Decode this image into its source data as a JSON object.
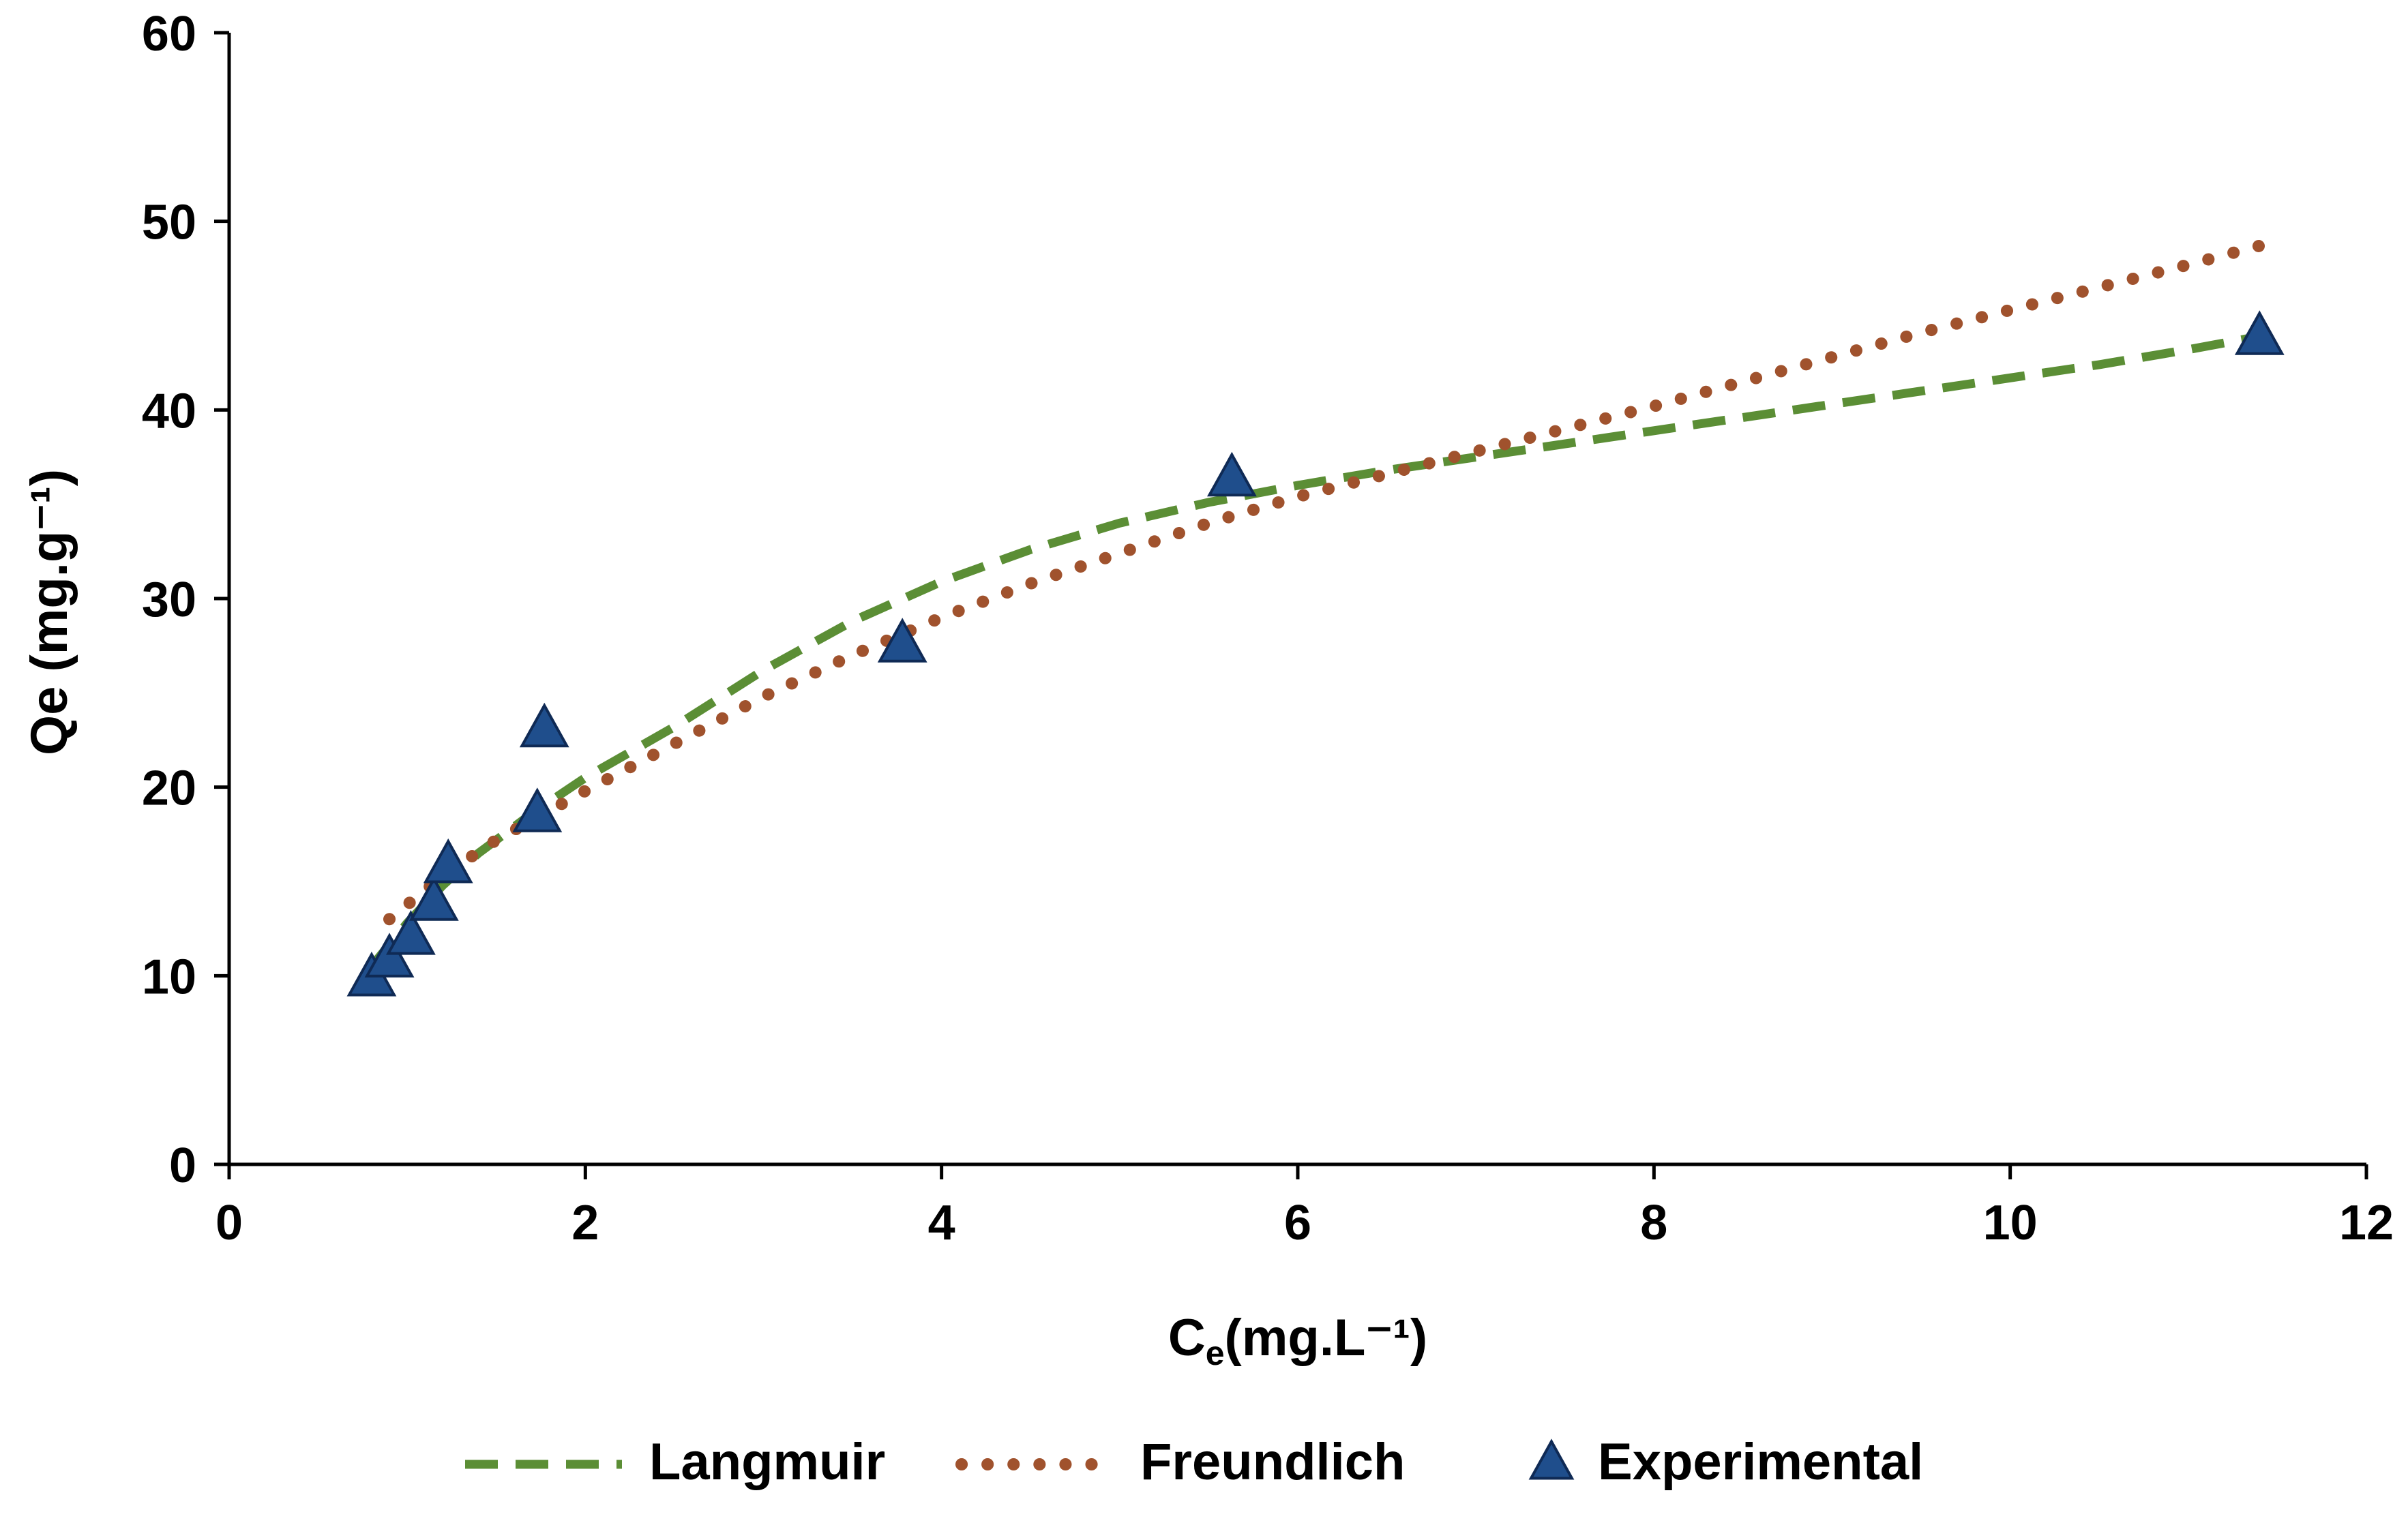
{
  "chart_data": {
    "type": "scatter",
    "title": "",
    "xlabel_main": "C",
    "xlabel_sub": "e",
    "xlabel_rest": "(mg.L⁻¹)",
    "ylabel": "Qe (mg.g⁻¹)",
    "xlim": [
      0,
      12
    ],
    "ylim": [
      0,
      60
    ],
    "xticks": [
      "0",
      "2",
      "4",
      "6",
      "8",
      "10",
      "12"
    ],
    "yticks": [
      "0",
      "10",
      "20",
      "30",
      "40",
      "50",
      "60"
    ],
    "grid": false,
    "legend_position": "bottom",
    "series": [
      {
        "name": "Langmuir",
        "kind": "line",
        "style": "dashed",
        "color": "#5B8E35",
        "x": [
          0.8,
          1.0,
          1.2,
          1.4,
          1.7,
          2.0,
          2.5,
          3.0,
          3.5,
          4.0,
          4.5,
          5.0,
          5.5,
          6.0,
          6.5,
          7.0,
          7.5,
          8.0,
          8.5,
          9.0,
          9.5,
          10.0,
          10.5,
          11.0,
          11.4
        ],
        "y": [
          10.5,
          12.8,
          14.8,
          16.5,
          18.6,
          20.5,
          23.2,
          26.2,
          28.8,
          30.9,
          32.6,
          34.0,
          35.1,
          36.0,
          36.8,
          37.5,
          38.2,
          38.9,
          39.6,
          40.3,
          41.0,
          41.7,
          42.4,
          43.2,
          43.9
        ]
      },
      {
        "name": "Freundlich",
        "kind": "line",
        "style": "dotted",
        "color": "#A0522D",
        "x": [
          0.9,
          1.2,
          1.5,
          2.0,
          2.5,
          3.0,
          3.5,
          4.0,
          4.5,
          5.0,
          5.5,
          6.0,
          6.5,
          7.0,
          7.5,
          8.0,
          8.5,
          9.0,
          9.5,
          10.0,
          10.5,
          11.0,
          11.4
        ],
        "y": [
          13.0,
          15.3,
          17.2,
          19.8,
          22.3,
          24.8,
          27.0,
          29.0,
          30.8,
          32.4,
          34.0,
          35.4,
          36.6,
          37.8,
          39.0,
          40.2,
          41.5,
          42.8,
          44.1,
          45.3,
          46.5,
          47.7,
          48.7
        ]
      },
      {
        "name": "Experimental",
        "kind": "scatter",
        "marker": "triangle",
        "color": "#1F4E8C",
        "x": [
          0.8,
          0.9,
          1.02,
          1.15,
          1.23,
          1.73,
          1.77,
          3.78,
          5.63,
          11.4
        ],
        "y": [
          9.8,
          10.8,
          12.0,
          13.8,
          15.8,
          18.5,
          23.0,
          27.5,
          36.3,
          43.8
        ]
      }
    ]
  }
}
